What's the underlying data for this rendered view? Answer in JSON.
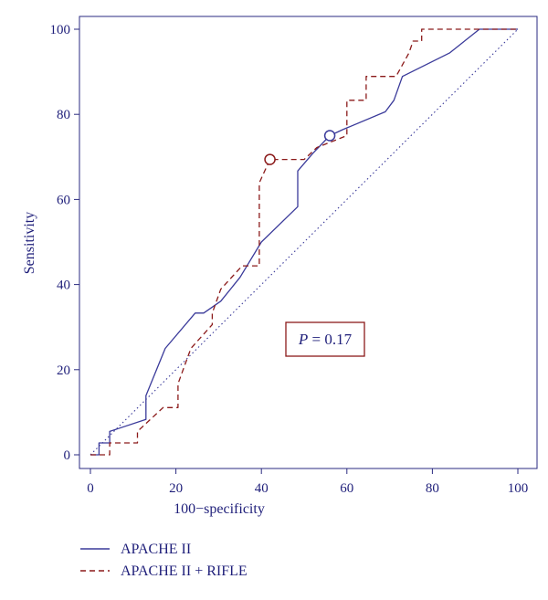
{
  "chart_data": {
    "type": "line",
    "title": "",
    "xlabel": "100−specificity",
    "ylabel": "Sensitivity",
    "xlim": [
      0,
      100
    ],
    "ylim": [
      0,
      100
    ],
    "xticks": [
      0,
      20,
      40,
      60,
      80,
      100
    ],
    "yticks": [
      0,
      20,
      40,
      60,
      80,
      100
    ],
    "grid": false,
    "legend_position": "bottom-left",
    "annotation": {
      "italic": "P",
      "rest": " = 0.17"
    },
    "series": [
      {
        "name": "APACHE II",
        "color": "#3a3a9a",
        "style": "solid",
        "points": [
          [
            0,
            0
          ],
          [
            2,
            0
          ],
          [
            2,
            2.8
          ],
          [
            4.5,
            2.8
          ],
          [
            4.5,
            5.5
          ],
          [
            13,
            8.3
          ],
          [
            13,
            13.9
          ],
          [
            17.5,
            25
          ],
          [
            24.5,
            33.3
          ],
          [
            26.5,
            33.3
          ],
          [
            30.5,
            36.1
          ],
          [
            35,
            41.7
          ],
          [
            40,
            50
          ],
          [
            48.5,
            58.3
          ],
          [
            48.5,
            66.7
          ],
          [
            52,
            70.8
          ],
          [
            56,
            75
          ],
          [
            59,
            76.4
          ],
          [
            69,
            80.6
          ],
          [
            71,
            83.3
          ],
          [
            73,
            88.9
          ],
          [
            84,
            94.4
          ],
          [
            91,
            100
          ],
          [
            100,
            100
          ]
        ]
      },
      {
        "name": "APACHE II + RIFLE",
        "color": "#8b1a1a",
        "style": "dashed",
        "points": [
          [
            0,
            0
          ],
          [
            4.5,
            0
          ],
          [
            4.5,
            2.8
          ],
          [
            11,
            2.8
          ],
          [
            11,
            5.5
          ],
          [
            17,
            11.1
          ],
          [
            20.5,
            11.1
          ],
          [
            20.5,
            16.7
          ],
          [
            23.5,
            25
          ],
          [
            28.5,
            30.6
          ],
          [
            28.5,
            33.3
          ],
          [
            30.5,
            38.9
          ],
          [
            35.5,
            44.4
          ],
          [
            39.5,
            44.4
          ],
          [
            39.5,
            63.9
          ],
          [
            42,
            69.4
          ],
          [
            50,
            69.4
          ],
          [
            53,
            72.2
          ],
          [
            60,
            75
          ],
          [
            60,
            83.3
          ],
          [
            64.5,
            83.3
          ],
          [
            64.5,
            88.9
          ],
          [
            71.5,
            88.9
          ],
          [
            74.5,
            94.4
          ],
          [
            75.5,
            97.2
          ],
          [
            77.5,
            97.2
          ],
          [
            77.5,
            100
          ],
          [
            100,
            100
          ]
        ]
      },
      {
        "name": "",
        "color": "#3a3a9a",
        "style": "dotted",
        "points": [
          [
            0,
            0
          ],
          [
            100,
            100
          ]
        ]
      }
    ],
    "markers": [
      {
        "series": "APACHE II + RIFLE",
        "x": 42,
        "y": 69.4
      },
      {
        "series": "APACHE II",
        "x": 56,
        "y": 75
      }
    ]
  }
}
